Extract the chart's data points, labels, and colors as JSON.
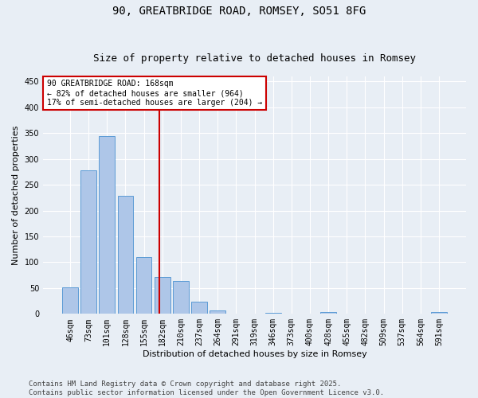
{
  "title": "90, GREATBRIDGE ROAD, ROMSEY, SO51 8FG",
  "subtitle": "Size of property relative to detached houses in Romsey",
  "xlabel": "Distribution of detached houses by size in Romsey",
  "ylabel": "Number of detached properties",
  "categories": [
    "46sqm",
    "73sqm",
    "101sqm",
    "128sqm",
    "155sqm",
    "182sqm",
    "210sqm",
    "237sqm",
    "264sqm",
    "291sqm",
    "319sqm",
    "346sqm",
    "373sqm",
    "400sqm",
    "428sqm",
    "455sqm",
    "482sqm",
    "509sqm",
    "537sqm",
    "564sqm",
    "591sqm"
  ],
  "values": [
    51,
    278,
    345,
    228,
    110,
    71,
    63,
    24,
    7,
    0,
    0,
    2,
    0,
    0,
    3,
    0,
    0,
    0,
    0,
    0,
    3
  ],
  "bar_color": "#aec6e8",
  "bar_edge_color": "#5b9bd5",
  "vline_color": "#cc0000",
  "vline_position": 4.85,
  "annotation_text": "90 GREATBRIDGE ROAD: 168sqm\n← 82% of detached houses are smaller (964)\n17% of semi-detached houses are larger (204) →",
  "annotation_box_color": "#ffffff",
  "annotation_box_edge_color": "#cc0000",
  "ylim": [
    0,
    460
  ],
  "yticks": [
    0,
    50,
    100,
    150,
    200,
    250,
    300,
    350,
    400,
    450
  ],
  "footer_text": "Contains HM Land Registry data © Crown copyright and database right 2025.\nContains public sector information licensed under the Open Government Licence v3.0.",
  "bg_color": "#e8eef5",
  "plot_bg_color": "#e8eef5",
  "title_fontsize": 10,
  "subtitle_fontsize": 9,
  "axis_label_fontsize": 8,
  "tick_fontsize": 7,
  "annotation_fontsize": 7,
  "footer_fontsize": 6.5
}
